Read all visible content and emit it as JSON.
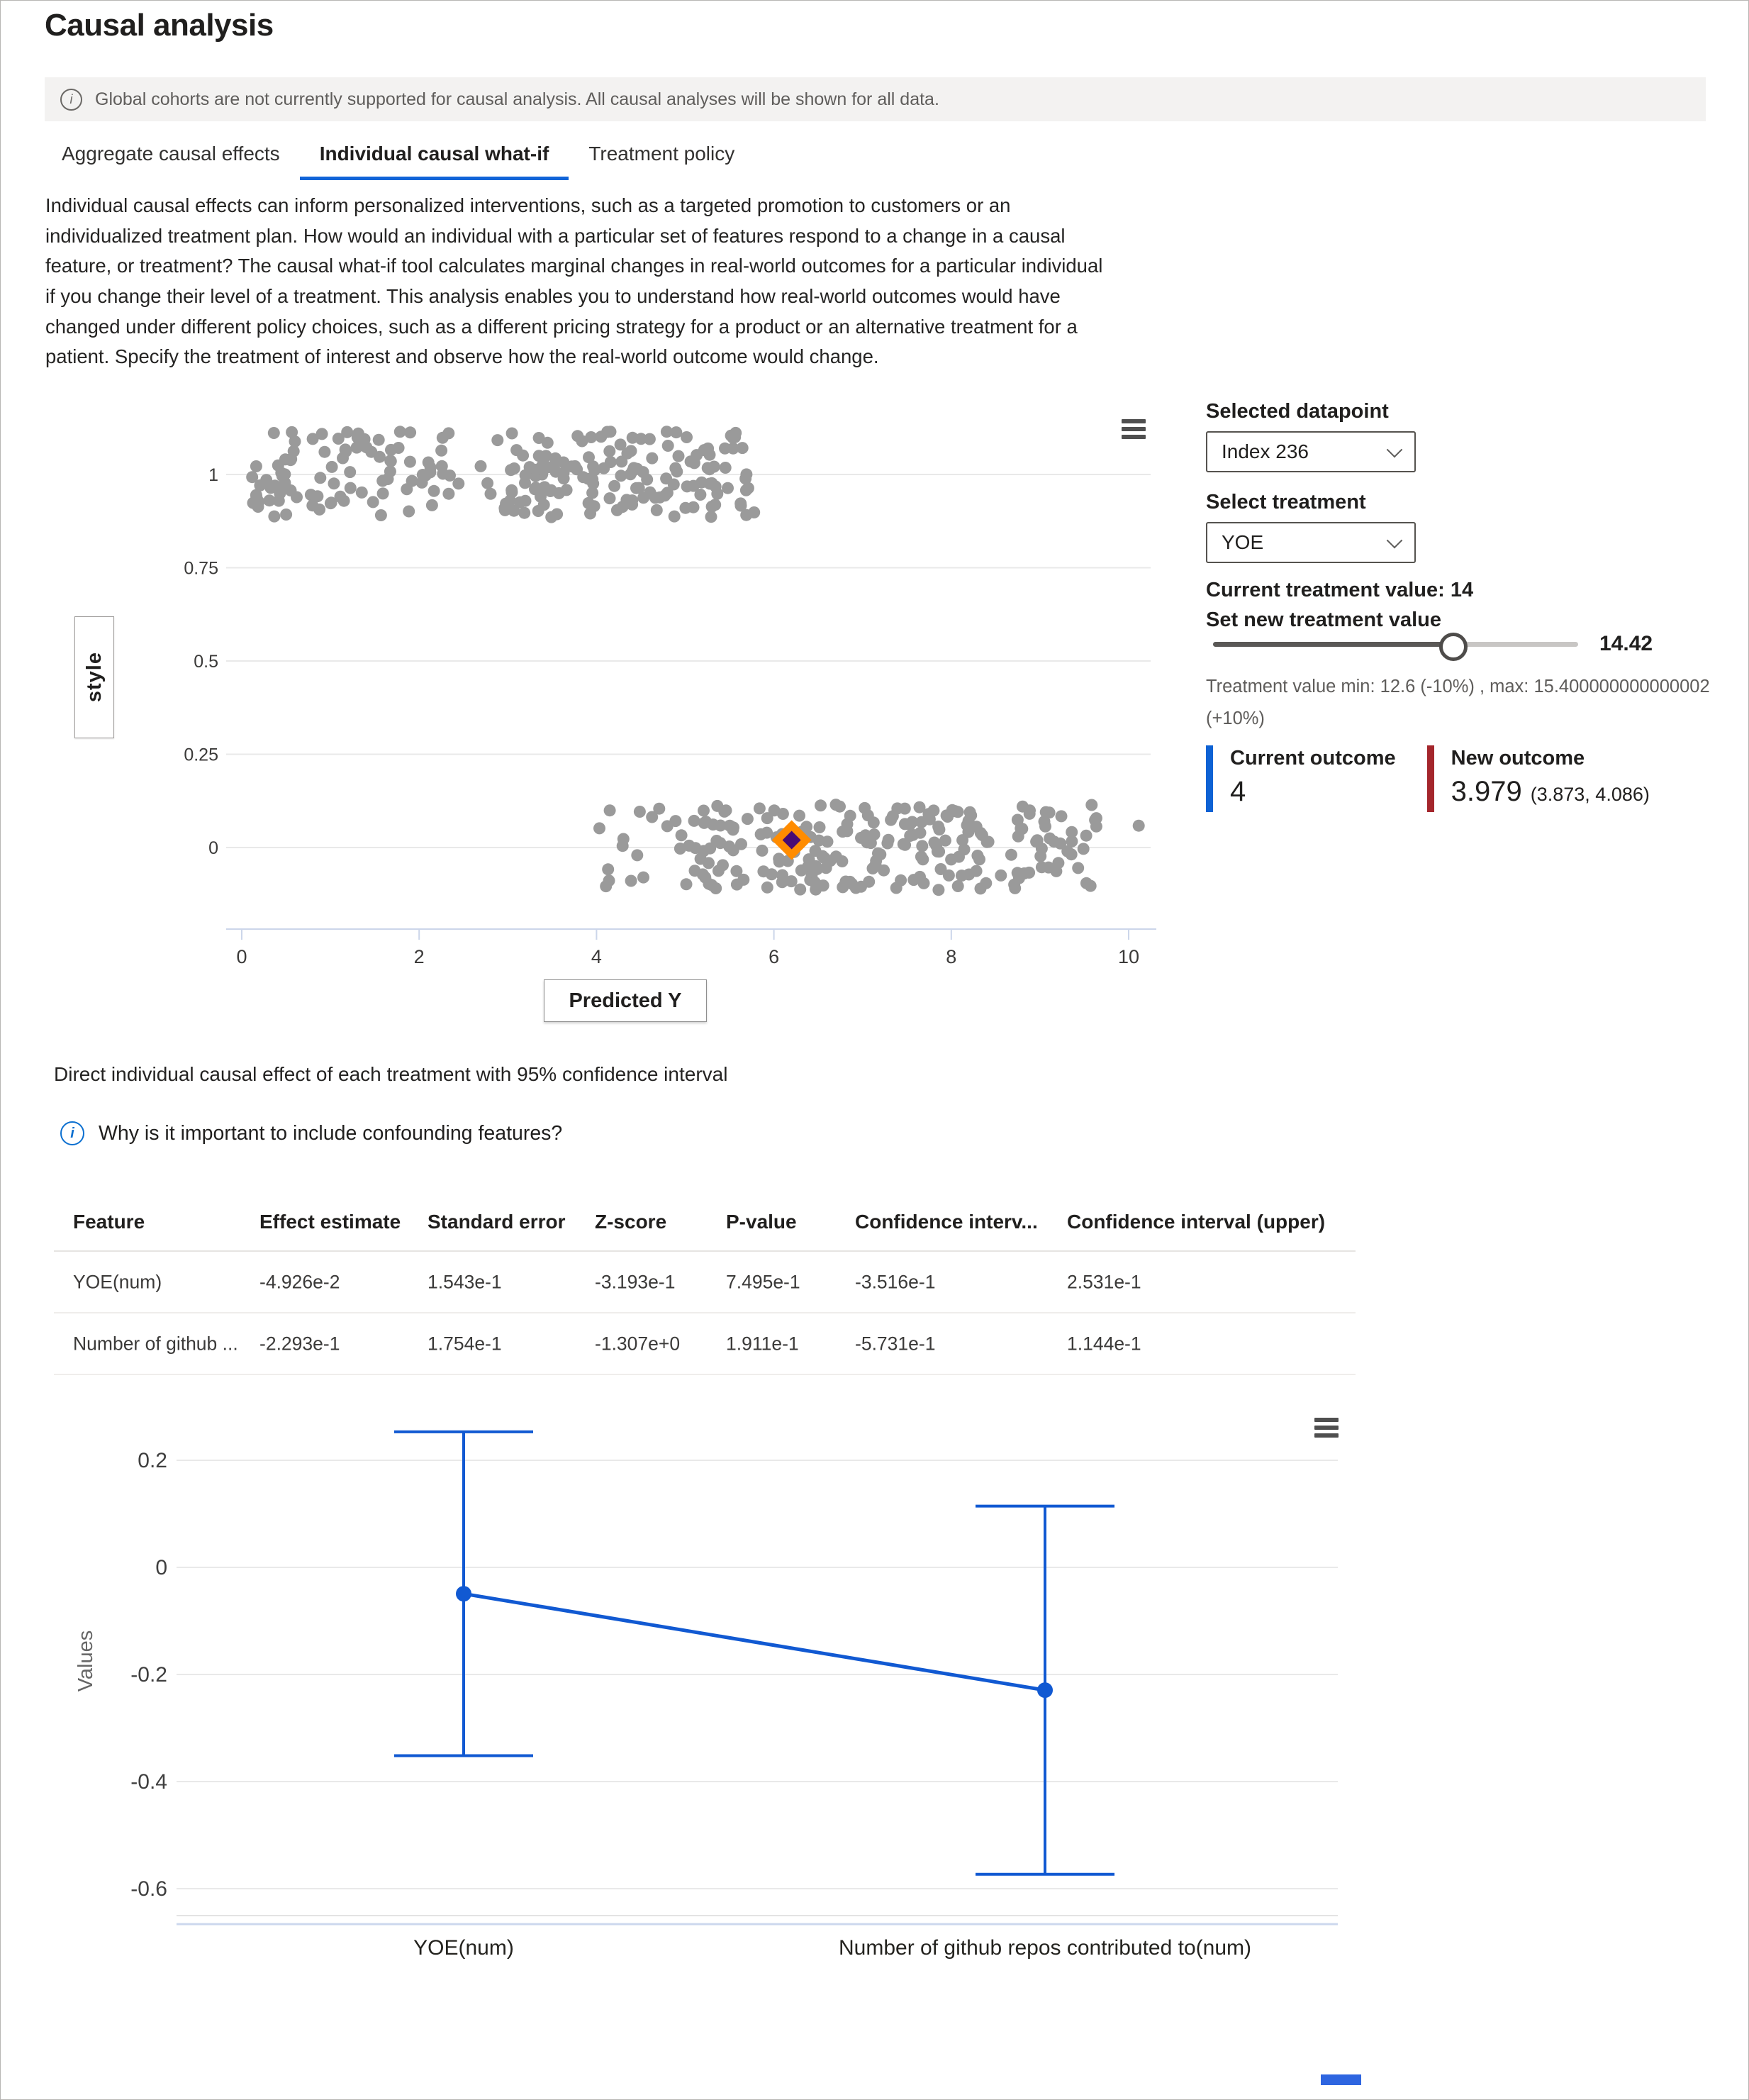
{
  "page": {
    "title": "Causal analysis"
  },
  "banner": {
    "text": "Global cohorts are not currently supported for causal analysis. All causal analyses will be shown for all data."
  },
  "tabs": [
    {
      "label": "Aggregate causal effects",
      "selected": false
    },
    {
      "label": "Individual causal what-if",
      "selected": true
    },
    {
      "label": "Treatment policy",
      "selected": false
    }
  ],
  "description": "Individual causal effects can inform personalized interventions, such as a targeted promotion to customers or an individualized treatment plan. How would an individual with a particular set of features respond to a change in a causal feature, or treatment? The causal what-if tool calculates marginal changes in real-world outcomes for a particular individual if you change their level of a treatment. This analysis enables you to understand how real-world outcomes would have changed under different policy choices, such as a different pricing strategy for a product or an alternative treatment for a patient. Specify the treatment of interest and observe how the real-world outcome would change.",
  "whatif": {
    "selected_datapoint_label": "Selected datapoint",
    "selected_datapoint_value": "Index 236",
    "select_treatment_label": "Select treatment",
    "treatment_value": "YOE",
    "current_treatment_text": "Current treatment value: 14",
    "set_new_treatment_label": "Set new treatment value",
    "slider_value": "14.42",
    "slider_percent": 65,
    "slider_note": "Treatment value min: 12.6 (-10%) , max: 15.400000000000002 (+10%)",
    "current_outcome": {
      "label": "Current outcome",
      "value": "4"
    },
    "new_outcome": {
      "label": "New outcome",
      "value": "3.979",
      "ci": "(3.873, 4.086)"
    }
  },
  "section": {
    "title": "Direct individual causal effect of each treatment with 95% confidence interval",
    "info_link": "Why is it important to include confounding features?"
  },
  "table": {
    "headers": [
      "Feature",
      "Effect estimate",
      "Standard error",
      "Z-score",
      "P-value",
      "Confidence interv...",
      "Confidence interval (upper)"
    ],
    "rows": [
      [
        "YOE(num)",
        "-4.926e-2",
        "1.543e-1",
        "-3.193e-1",
        "7.495e-1",
        "-3.516e-1",
        "2.531e-1"
      ],
      [
        "Number of github ...",
        "-2.293e-1",
        "1.754e-1",
        "-1.307e+0",
        "1.911e-1",
        "-5.731e-1",
        "1.144e-1"
      ]
    ]
  },
  "chart_data": [
    {
      "type": "scatter",
      "title": "",
      "xlabel": "Predicted Y",
      "ylabel": "style",
      "xticks": [
        0,
        2,
        4,
        6,
        8,
        10
      ],
      "yticks": [
        1,
        0.75,
        0.5,
        0.25,
        0
      ],
      "xlim": [
        -0.6,
        10.6
      ],
      "ylim": [
        -0.25,
        1.25
      ],
      "grid": true,
      "point_color": "#9a9a9a",
      "clusters": [
        {
          "n": 92,
          "x_min": 0.08,
          "x_max": 2.35,
          "y_center": 1,
          "y_jitter": 0.115
        },
        {
          "n": 5,
          "x_min": 2.4,
          "x_max": 3.0,
          "y_center": 1,
          "y_jitter": 0.1
        },
        {
          "n": 148,
          "x_min": 2.95,
          "x_max": 5.78,
          "y_center": 1,
          "y_jitter": 0.115
        },
        {
          "n": 22,
          "x_min": 4.02,
          "x_max": 5.3,
          "y_center": 0,
          "y_jitter": 0.115
        },
        {
          "n": 215,
          "x_min": 5.0,
          "x_max": 9.65,
          "y_center": 0,
          "y_jitter": 0.115
        },
        {
          "n": 1,
          "x_min": 10.1,
          "x_max": 10.12,
          "y_center": 0,
          "y_jitter": 0.06
        }
      ],
      "selected_point": {
        "x": 6.2,
        "y": 0.02,
        "marker": "diamond",
        "outer_color": "#ff8c00",
        "inner_color": "#470b73"
      }
    },
    {
      "type": "line",
      "subtype": "errorbar-95ci",
      "ylabel": "Values",
      "categories": [
        "YOE(num)",
        "Number of github repos contributed to(num)"
      ],
      "values": [
        -0.04926,
        -0.2293
      ],
      "ci_lower": [
        -0.3516,
        -0.5731
      ],
      "ci_upper": [
        0.2531,
        0.1144
      ],
      "yticks": [
        0.2,
        0,
        -0.2,
        -0.4,
        -0.6
      ],
      "ylim": [
        -0.65,
        0.3
      ],
      "grid": true,
      "legend": "none",
      "line_color": "#1159d2"
    }
  ],
  "colors": {
    "accent_blue": "#1164d8",
    "chart_blue": "#1159d2",
    "current_outcome_bar": "#0e62d4",
    "new_outcome_bar": "#a4262c",
    "scatter_dot": "#9a9a9a",
    "selected_marker_outer": "#ff8c00",
    "selected_marker_inner": "#470b73",
    "banner_bg": "#f3f2f1"
  },
  "icons": {
    "banner_info": "info-circle",
    "confounding_info": "info-circle",
    "chart_menu": "hamburger-menu",
    "dropdown": "chevron-down"
  }
}
